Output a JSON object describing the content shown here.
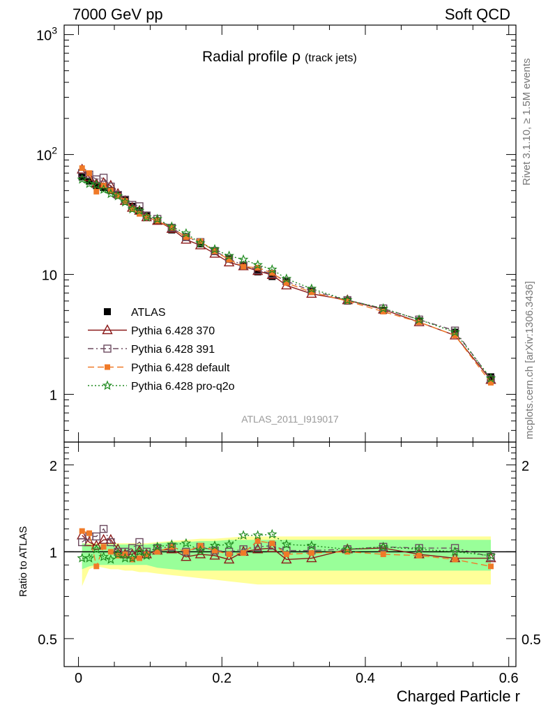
{
  "header": {
    "left": "7000 GeV pp",
    "right": "Soft QCD"
  },
  "side": {
    "top": "Rivet 3.1.10, ≥ 1.5M events",
    "bottom": "mcplots.cern.ch [arXiv:1306.3436]"
  },
  "chart_data": [
    {
      "type": "line",
      "title": "Radial profile",
      "title_symbol": "ρ",
      "title_suffix": "(track jets)",
      "watermark": "ATLAS_2011_I919017",
      "yscale": "log",
      "xlim": [
        -0.02,
        0.61
      ],
      "ylim": [
        0.4,
        1200
      ],
      "y_ticks": [
        {
          "v": 1,
          "label": "1"
        },
        {
          "v": 10,
          "label": "10"
        }
      ],
      "y_pow_ticks": [
        {
          "v": 100,
          "base": "10",
          "exp": "2"
        },
        {
          "v": 1000,
          "base": "10",
          "exp": "3"
        }
      ],
      "legend_position": "lower-left",
      "x": [
        0.005,
        0.015,
        0.025,
        0.035,
        0.045,
        0.055,
        0.065,
        0.075,
        0.085,
        0.095,
        0.11,
        0.13,
        0.15,
        0.17,
        0.19,
        0.21,
        0.23,
        0.25,
        0.27,
        0.29,
        0.325,
        0.375,
        0.425,
        0.475,
        0.525,
        0.575
      ],
      "series": [
        {
          "name": "ATLAS",
          "color": "#000000",
          "marker": "square",
          "dash": "none",
          "values": [
            65,
            60,
            55,
            53,
            50,
            46,
            42,
            37,
            34,
            31,
            28,
            23.5,
            20.5,
            18,
            15.5,
            13.5,
            11.7,
            10.5,
            9.6,
            8.7,
            7.2,
            6.0,
            5.0,
            4.1,
            3.3,
            1.4
          ]
        },
        {
          "name": "Pythia 6.428 370",
          "color": "#8b1a1a",
          "marker": "triangle",
          "dash": "none",
          "values": [
            75,
            65,
            57,
            58,
            55,
            47,
            41,
            36,
            34,
            30,
            28,
            24,
            19.5,
            17.5,
            14.9,
            12.6,
            11.7,
            10.7,
            9.9,
            8.1,
            6.9,
            6.1,
            5.1,
            4.0,
            3.1,
            1.32
          ]
        },
        {
          "name": "Pythia 6.428 391",
          "color": "#6b4a5f",
          "marker": "opensquare",
          "dash": "8,4,2,4",
          "values": [
            70,
            68,
            62,
            64,
            54,
            46,
            42,
            38,
            37,
            31,
            29,
            24.5,
            20.5,
            18.6,
            15.7,
            13.5,
            11.9,
            10.9,
            10.1,
            8.8,
            7.3,
            6.1,
            5.2,
            4.2,
            3.4,
            1.34
          ]
        },
        {
          "name": "Pythia 6.428 default",
          "color": "#f07a28",
          "marker": "smallsquare",
          "dash": "9,5",
          "values": [
            77,
            70,
            49,
            55,
            50,
            45,
            41,
            35,
            32,
            30,
            28,
            24.5,
            20.5,
            18.9,
            15.6,
            13.3,
            11.6,
            11.4,
            10.3,
            8.5,
            7.1,
            6.0,
            4.9,
            4.0,
            3.1,
            1.25
          ]
        },
        {
          "name": "Pythia 6.428 pro-q2o",
          "color": "#1f8a1f",
          "marker": "star",
          "dash": "2,3",
          "values": [
            62,
            57,
            56,
            51,
            47,
            45,
            40,
            35,
            34,
            30,
            29,
            25,
            22,
            18.2,
            16.2,
            14.3,
            13.3,
            12.0,
            11.0,
            9.2,
            7.6,
            6.1,
            5.2,
            4.2,
            3.3,
            1.36
          ]
        }
      ]
    },
    {
      "type": "line",
      "ylabel": "Ratio to ATLAS",
      "xlabel": "Charged Particle r",
      "yscale": "log",
      "xlim": [
        -0.02,
        0.61
      ],
      "ylim": [
        0.4,
        2.4
      ],
      "y_ticks_left": [
        {
          "v": 1,
          "label": "1"
        },
        {
          "v": 2,
          "label": "2"
        },
        {
          "v": 0.5,
          "label": "0.5"
        }
      ],
      "y_ticks_right": [
        {
          "v": 2,
          "label": "2"
        },
        {
          "v": 0.5,
          "label": "0.5"
        }
      ],
      "x_ticks": [
        {
          "v": 0,
          "label": "0"
        },
        {
          "v": 0.2,
          "label": "0.2"
        },
        {
          "v": 0.4,
          "label": "0.4"
        },
        {
          "v": 0.6,
          "label": "0.6"
        }
      ],
      "green_band": {
        "lower": [
          0.87,
          0.89,
          0.9,
          0.9,
          0.9,
          0.9,
          0.9,
          0.9,
          0.9,
          0.9,
          0.88,
          0.87,
          0.86,
          0.86,
          0.86,
          0.86,
          0.86,
          0.86,
          0.86,
          0.86,
          0.86,
          0.86,
          0.86,
          0.86,
          0.86,
          0.86
        ],
        "upper": [
          1.07,
          1.06,
          1.06,
          1.06,
          1.06,
          1.06,
          1.06,
          1.06,
          1.06,
          1.06,
          1.07,
          1.08,
          1.08,
          1.09,
          1.09,
          1.1,
          1.1,
          1.1,
          1.1,
          1.1,
          1.1,
          1.1,
          1.1,
          1.1,
          1.1,
          1.1
        ]
      },
      "yellow_band": {
        "lower": [
          0.76,
          0.87,
          0.89,
          0.88,
          0.87,
          0.87,
          0.86,
          0.86,
          0.85,
          0.85,
          0.84,
          0.83,
          0.82,
          0.81,
          0.8,
          0.79,
          0.78,
          0.77,
          0.77,
          0.77,
          0.77,
          0.77,
          0.77,
          0.77,
          0.77,
          0.77
        ],
        "upper": [
          1.07,
          1.07,
          1.07,
          1.07,
          1.07,
          1.07,
          1.07,
          1.07,
          1.07,
          1.07,
          1.08,
          1.09,
          1.1,
          1.11,
          1.11,
          1.12,
          1.13,
          1.13,
          1.13,
          1.13,
          1.13,
          1.13,
          1.13,
          1.13,
          1.13,
          1.13
        ]
      },
      "series": [
        {
          "name": "Pythia 6.428 370",
          "color": "#8b1a1a",
          "marker": "triangle",
          "dash": "none",
          "values": [
            1.14,
            1.08,
            1.05,
            1.1,
            1.1,
            1.02,
            0.98,
            0.98,
            1.01,
            0.98,
            1.01,
            1.02,
            0.96,
            0.98,
            0.97,
            0.94,
            1.0,
            1.02,
            1.03,
            0.94,
            0.95,
            1.02,
            1.03,
            0.98,
            0.95,
            0.95
          ]
        },
        {
          "name": "Pythia 6.428 391",
          "color": "#6b4a5f",
          "marker": "opensquare",
          "dash": "8,4,2,4",
          "values": [
            1.08,
            1.13,
            1.13,
            1.2,
            1.08,
            1.0,
            1.0,
            1.03,
            1.08,
            1.0,
            1.03,
            1.04,
            1.0,
            1.04,
            1.01,
            1.0,
            1.02,
            1.04,
            1.05,
            1.01,
            1.01,
            1.02,
            1.04,
            1.03,
            1.03,
            0.96
          ]
        },
        {
          "name": "Pythia 6.428 default",
          "color": "#f07a28",
          "marker": "smallsquare",
          "dash": "9,5",
          "values": [
            1.18,
            1.16,
            0.89,
            1.04,
            1.0,
            0.97,
            0.98,
            0.94,
            0.95,
            0.98,
            1.0,
            1.04,
            1.0,
            1.05,
            1.01,
            0.98,
            0.99,
            1.09,
            1.07,
            0.98,
            0.99,
            1.0,
            0.98,
            0.97,
            0.94,
            0.89
          ]
        },
        {
          "name": "Pythia 6.428 pro-q2o",
          "color": "#1f8a1f",
          "marker": "star",
          "dash": "2,3",
          "values": [
            0.95,
            0.95,
            1.02,
            0.96,
            0.94,
            0.98,
            0.95,
            0.95,
            1.0,
            0.97,
            1.04,
            1.06,
            1.07,
            1.01,
            1.05,
            1.06,
            1.14,
            1.14,
            1.15,
            1.06,
            1.05,
            1.02,
            1.04,
            1.02,
            1.0,
            0.97
          ]
        }
      ]
    }
  ]
}
